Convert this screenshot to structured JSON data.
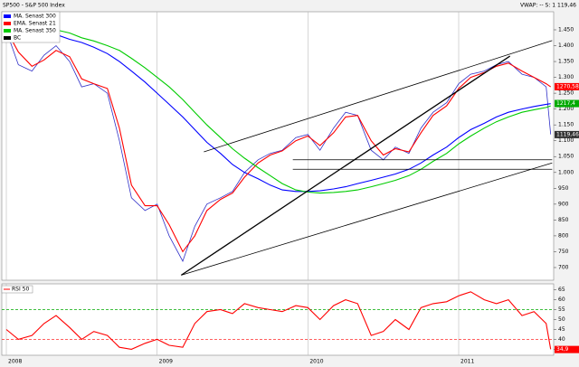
{
  "chart_data": [
    {
      "type": "line",
      "title": "SP500 - S&P 500 Index",
      "subtitle": "VWAP: -- S: 1 119,46",
      "x": [
        2008.0,
        2008.08,
        2008.17,
        2008.25,
        2008.33,
        2008.42,
        2008.5,
        2008.58,
        2008.67,
        2008.75,
        2008.83,
        2008.92,
        2009.0,
        2009.08,
        2009.17,
        2009.25,
        2009.33,
        2009.42,
        2009.5,
        2009.58,
        2009.67,
        2009.75,
        2009.83,
        2009.92,
        2010.0,
        2010.08,
        2010.17,
        2010.25,
        2010.33,
        2010.42,
        2010.5,
        2010.58,
        2010.67,
        2010.75,
        2010.83,
        2010.92,
        2011.0,
        2011.08,
        2011.17,
        2011.25,
        2011.33,
        2011.42,
        2011.5,
        2011.58,
        2011.61
      ],
      "xlim": [
        2007.97,
        2011.63
      ],
      "xticks": [
        2008,
        2009,
        2010,
        2011
      ],
      "ylim": [
        660,
        1507
      ],
      "yticks": [
        700,
        750,
        800,
        850,
        900,
        950,
        {
          "value": 1000,
          "label": "1.000"
        },
        {
          "value": 1050,
          "label": "1.050"
        },
        {
          "value": 1100,
          "label": "1.100"
        },
        {
          "value": 1150,
          "label": "1.150"
        },
        {
          "value": 1200,
          "label": "1.200"
        },
        {
          "value": 1250,
          "label": "1.250"
        },
        {
          "value": 1300,
          "label": "1.300"
        },
        {
          "value": 1350,
          "label": "1.350"
        },
        {
          "value": 1400,
          "label": "1.400"
        },
        {
          "value": 1450,
          "label": "1.450"
        }
      ],
      "grid_x": true,
      "legend": "upper left",
      "series": [
        {
          "name": "MA. Senast 300",
          "color": "#0000ff",
          "values": [
            1450,
            1452,
            1450,
            1445,
            1435,
            1420,
            1410,
            1395,
            1375,
            1350,
            1320,
            1285,
            1250,
            1215,
            1175,
            1135,
            1095,
            1060,
            1025,
            1000,
            980,
            960,
            945,
            940,
            940,
            942,
            948,
            955,
            965,
            975,
            985,
            995,
            1010,
            1030,
            1055,
            1080,
            1110,
            1135,
            1155,
            1175,
            1190,
            1200,
            1208,
            1215,
            1217
          ]
        },
        {
          "name": "EMA. Senast 21",
          "color": "#ff0000",
          "values": [
            1450,
            1380,
            1335,
            1355,
            1385,
            1365,
            1295,
            1280,
            1265,
            1140,
            960,
            895,
            895,
            835,
            750,
            800,
            880,
            915,
            935,
            985,
            1030,
            1055,
            1068,
            1100,
            1115,
            1085,
            1125,
            1175,
            1180,
            1100,
            1055,
            1075,
            1065,
            1125,
            1180,
            1210,
            1265,
            1300,
            1315,
            1335,
            1345,
            1320,
            1300,
            1280,
            1270
          ]
        },
        {
          "name": "MA. Senast 350",
          "color": "#00cc00",
          "values": [
            1460,
            1460,
            1458,
            1455,
            1450,
            1440,
            1425,
            1415,
            1400,
            1385,
            1360,
            1330,
            1300,
            1270,
            1230,
            1190,
            1150,
            1110,
            1075,
            1045,
            1015,
            990,
            965,
            945,
            938,
            935,
            937,
            940,
            945,
            955,
            965,
            975,
            990,
            1010,
            1035,
            1060,
            1090,
            1115,
            1140,
            1160,
            1175,
            1190,
            1198,
            1205,
            1210
          ]
        },
        {
          "name": "BC",
          "color": "#000000",
          "line_color": "#3030c8",
          "values": [
            1447,
            1340,
            1320,
            1370,
            1400,
            1350,
            1270,
            1280,
            1250,
            1100,
            920,
            880,
            900,
            800,
            720,
            830,
            900,
            920,
            940,
            1000,
            1040,
            1060,
            1070,
            1110,
            1120,
            1070,
            1140,
            1190,
            1180,
            1070,
            1040,
            1080,
            1060,
            1140,
            1190,
            1220,
            1280,
            1310,
            1320,
            1340,
            1350,
            1310,
            1300,
            1270,
            1120
          ]
        }
      ],
      "trendline_color": "#000000",
      "trendlines": [
        {
          "x": [
            2009.16,
            2011.62
          ],
          "y": [
            676,
            1030
          ]
        },
        {
          "x": [
            2009.31,
            2011.62
          ],
          "y": [
            1065,
            1416
          ]
        },
        {
          "x": [
            2009.16,
            2011.34
          ],
          "y": [
            676,
            1367
          ]
        },
        {
          "x": [
            2009.9,
            2011.62
          ],
          "y": [
            1040,
            1040
          ]
        },
        {
          "x": [
            2009.9,
            2011.62
          ],
          "y": [
            1010,
            1010
          ]
        }
      ],
      "price_tags": [
        {
          "value": 1270.58,
          "label": "1270,58",
          "color": "#ff0000"
        },
        {
          "value": 1217.4,
          "label": "1217,4",
          "color": "#00aa00"
        },
        {
          "value": 1119.46,
          "label": "1119,46",
          "color": "#333333"
        }
      ]
    },
    {
      "type": "line",
      "legend_label": "RSI 50",
      "ylim": [
        32,
        68
      ],
      "yticks": [
        35,
        40,
        45,
        50,
        55,
        60,
        65
      ],
      "levels": [
        {
          "value": 55,
          "color": "#00aa00"
        },
        {
          "value": 40,
          "color": "#ff0000"
        }
      ],
      "series": [
        {
          "name": "RSI",
          "color": "#ff0000",
          "values": [
            45,
            40,
            42,
            48,
            52,
            46,
            40,
            44,
            42,
            36,
            35,
            38,
            40,
            37,
            36,
            48,
            54,
            55,
            53,
            58,
            56,
            55,
            54,
            57,
            56,
            50,
            57,
            60,
            58,
            42,
            44,
            50,
            45,
            56,
            58,
            59,
            62,
            64,
            60,
            58,
            60,
            52,
            54,
            48,
            35
          ]
        }
      ],
      "price_tags": [
        {
          "value": 34.9,
          "label": "34,9",
          "color": "#ff0000"
        }
      ]
    }
  ]
}
